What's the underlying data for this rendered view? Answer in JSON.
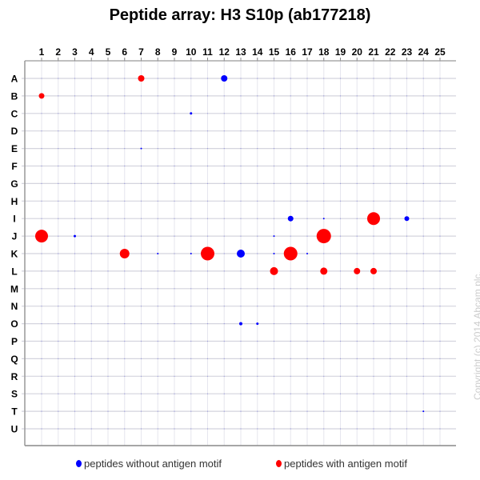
{
  "chart_data": {
    "type": "scatter",
    "title": "Peptide array:  H3 S10p (ab177218)",
    "x_categories": [
      "1",
      "2",
      "3",
      "4",
      "5",
      "6",
      "7",
      "8",
      "9",
      "10",
      "11",
      "12",
      "13",
      "14",
      "15",
      "16",
      "17",
      "18",
      "19",
      "20",
      "21",
      "22",
      "23",
      "24",
      "25"
    ],
    "y_categories": [
      "A",
      "B",
      "C",
      "D",
      "E",
      "F",
      "G",
      "H",
      "I",
      "J",
      "K",
      "L",
      "M",
      "N",
      "O",
      "P",
      "Q",
      "R",
      "S",
      "T",
      "U"
    ],
    "grid": true,
    "legend_position": "bottom",
    "series": [
      {
        "name": "peptides without antigen motif",
        "color": "#0000ff",
        "points": [
          {
            "col": 12,
            "row": "A",
            "signal": 4
          },
          {
            "col": 10,
            "row": "C",
            "signal": 1.5
          },
          {
            "col": 7,
            "row": "E",
            "signal": 1
          },
          {
            "col": 16,
            "row": "I",
            "signal": 3.5
          },
          {
            "col": 18,
            "row": "I",
            "signal": 1
          },
          {
            "col": 23,
            "row": "I",
            "signal": 3
          },
          {
            "col": 3,
            "row": "J",
            "signal": 1.5
          },
          {
            "col": 15,
            "row": "J",
            "signal": 1
          },
          {
            "col": 8,
            "row": "K",
            "signal": 1
          },
          {
            "col": 10,
            "row": "K",
            "signal": 1
          },
          {
            "col": 13,
            "row": "K",
            "signal": 5
          },
          {
            "col": 15,
            "row": "K",
            "signal": 1
          },
          {
            "col": 17,
            "row": "K",
            "signal": 1
          },
          {
            "col": 13,
            "row": "O",
            "signal": 2
          },
          {
            "col": 14,
            "row": "O",
            "signal": 1.5
          },
          {
            "col": 24,
            "row": "T",
            "signal": 1
          }
        ]
      },
      {
        "name": "peptides with antigen motif",
        "color": "#ff0000",
        "points": [
          {
            "col": 7,
            "row": "A",
            "signal": 4
          },
          {
            "col": 1,
            "row": "B",
            "signal": 3.5
          },
          {
            "col": 21,
            "row": "I",
            "signal": 8
          },
          {
            "col": 1,
            "row": "J",
            "signal": 8
          },
          {
            "col": 18,
            "row": "J",
            "signal": 9
          },
          {
            "col": 6,
            "row": "K",
            "signal": 6
          },
          {
            "col": 11,
            "row": "K",
            "signal": 8.5
          },
          {
            "col": 16,
            "row": "K",
            "signal": 8.5
          },
          {
            "col": 15,
            "row": "L",
            "signal": 5
          },
          {
            "col": 18,
            "row": "L",
            "signal": 4.5
          },
          {
            "col": 20,
            "row": "L",
            "signal": 4
          },
          {
            "col": 21,
            "row": "L",
            "signal": 4
          }
        ]
      }
    ]
  },
  "legend": {
    "without": "peptides without antigen motif",
    "with": "peptides with antigen motif"
  },
  "copyright": "Copyright (c) 2014 Abcam plc."
}
